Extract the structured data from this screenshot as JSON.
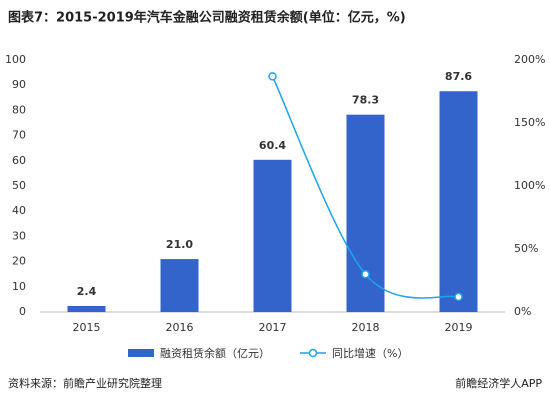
{
  "chart_data": {
    "type": "bar-line",
    "title": "图表7：2015-2019年汽车金融公司融资租赁余额(单位：亿元，%)",
    "categories": [
      "2015",
      "2016",
      "2017",
      "2018",
      "2019"
    ],
    "series": [
      {
        "name": "融资租赁余额（亿元）",
        "type": "bar",
        "color": "#3364cc",
        "values": [
          2.4,
          21.0,
          60.4,
          78.3,
          87.6
        ],
        "value_labels": [
          "2.4",
          "21.0",
          "60.4",
          "78.3",
          "87.6"
        ]
      },
      {
        "name": "同比增速（%）",
        "type": "line",
        "axis": "y2",
        "color": "#1ea4e8",
        "values": [
          null,
          null,
          187,
          30,
          12
        ]
      }
    ],
    "ylim": [
      0,
      100
    ],
    "yticks": [
      0,
      10,
      20,
      30,
      40,
      50,
      60,
      70,
      80,
      90,
      100
    ],
    "y2lim": [
      0,
      200
    ],
    "y2ticks": [
      {
        "value": 0,
        "label": "0%"
      },
      {
        "value": 50,
        "label": "50%"
      },
      {
        "value": 100,
        "label": "100%"
      },
      {
        "value": 150,
        "label": "150%"
      },
      {
        "value": 200,
        "label": "200%"
      }
    ],
    "source": "资料来源：前瞻产业研究院整理",
    "brand": "前瞻经济学人APP"
  }
}
